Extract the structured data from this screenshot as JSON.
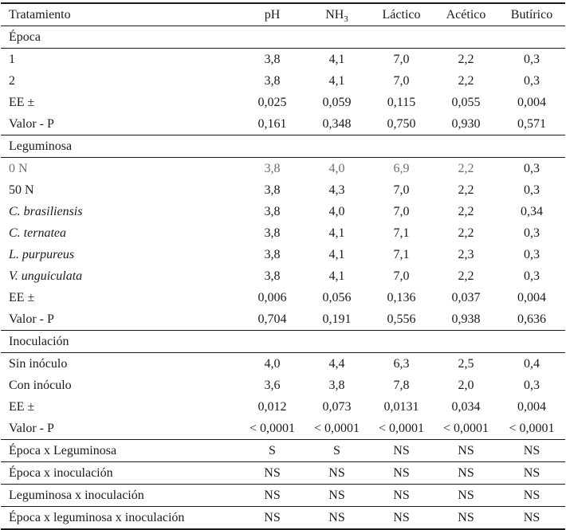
{
  "colors": {
    "text": "#1a1a1a",
    "muted_text": "#6e6e6e",
    "rule": "#1a1a1a",
    "background": "#ffffff"
  },
  "table": {
    "columns": [
      {
        "label": "Tratamiento"
      },
      {
        "label": "pH"
      },
      {
        "label": "NH",
        "sub": "3"
      },
      {
        "label": "Láctico"
      },
      {
        "label": "Acético"
      },
      {
        "label": "Butírico"
      }
    ],
    "rows": [
      {
        "type": "section",
        "label": "Época"
      },
      {
        "type": "data",
        "label": "1",
        "values": [
          "3,8",
          "4,1",
          "7,0",
          "2,2",
          "0,3"
        ]
      },
      {
        "type": "data",
        "label": "2",
        "values": [
          "3,8",
          "4,1",
          "7,0",
          "2,2",
          "0,3"
        ]
      },
      {
        "type": "data",
        "label": "EE ±",
        "values": [
          "0,025",
          "0,059",
          "0,115",
          "0,055",
          "0,004"
        ]
      },
      {
        "type": "data",
        "label": "Valor - P",
        "values": [
          "0,161",
          "0,348",
          "0,750",
          "0,930",
          "0,571"
        ]
      },
      {
        "type": "section",
        "label": "Leguminosa"
      },
      {
        "type": "data",
        "label": "0 N",
        "values": [
          "3,8",
          "4,0",
          "6,9",
          "2,2",
          "0,3"
        ],
        "muted_cells": [
          0,
          1,
          2,
          3,
          4
        ]
      },
      {
        "type": "data",
        "label": "50 N",
        "values": [
          "3,8",
          "4,3",
          "7,0",
          "2,2",
          "0,3"
        ]
      },
      {
        "type": "data",
        "label": "C. brasiliensis",
        "italic": true,
        "values": [
          "3,8",
          "4,0",
          "7,0",
          "2,2",
          "0,34"
        ]
      },
      {
        "type": "data",
        "label": "C. ternatea",
        "italic": true,
        "values": [
          "3,8",
          "4,1",
          "7,1",
          "2,2",
          "0,3"
        ]
      },
      {
        "type": "data",
        "label": "L. purpureus",
        "italic": true,
        "values": [
          "3,8",
          "4,1",
          "7,1",
          "2,3",
          "0,3"
        ]
      },
      {
        "type": "data",
        "label": "V. unguiculata",
        "italic": true,
        "values": [
          "3,8",
          "4,1",
          "7,0",
          "2,2",
          "0,3"
        ]
      },
      {
        "type": "data",
        "label": "EE ±",
        "values": [
          "0,006",
          "0,056",
          "0,136",
          "0,037",
          "0,004"
        ]
      },
      {
        "type": "data",
        "label": "Valor - P",
        "values": [
          "0,704",
          "0,191",
          "0,556",
          "0,938",
          "0,636"
        ]
      },
      {
        "type": "section",
        "label": "Inoculación"
      },
      {
        "type": "data",
        "label": "Sin inóculo",
        "values": [
          "4,0",
          "4,4",
          "6,3",
          "2,5",
          "0,4"
        ]
      },
      {
        "type": "data",
        "label": "Con inóculo",
        "values": [
          "3,6",
          "3,8",
          "7,8",
          "2,0",
          "0,3"
        ]
      },
      {
        "type": "data",
        "label": "EE ±",
        "values": [
          "0,012",
          "0,073",
          "0,0131",
          "0,034",
          "0,004"
        ]
      },
      {
        "type": "data",
        "label": "Valor - P",
        "values": [
          "< 0,0001",
          "< 0,0001",
          "< 0,0001",
          "< 0,0001",
          "< 0,0001"
        ]
      },
      {
        "type": "interaction",
        "label": "Época x Leguminosa",
        "values": [
          "S",
          "S",
          "NS",
          "NS",
          "NS"
        ]
      },
      {
        "type": "interaction",
        "label": "Época x inoculación",
        "values": [
          "NS",
          "NS",
          "NS",
          "NS",
          "NS"
        ]
      },
      {
        "type": "interaction",
        "label": "Leguminosa x inoculación",
        "values": [
          "NS",
          "NS",
          "NS",
          "NS",
          "NS"
        ]
      },
      {
        "type": "interaction",
        "label": "Época x leguminosa x inoculación",
        "values": [
          "NS",
          "NS",
          "NS",
          "NS",
          "NS"
        ]
      }
    ]
  }
}
